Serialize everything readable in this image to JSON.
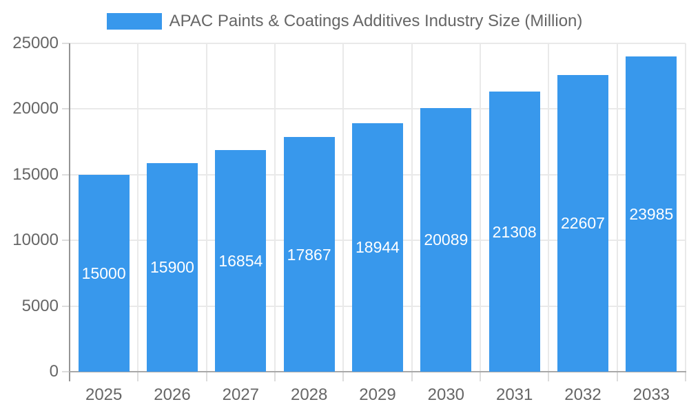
{
  "chart_data": {
    "type": "bar",
    "title": "APAC Paints & Coatings Additives Industry Size (Million)",
    "categories": [
      "2025",
      "2026",
      "2027",
      "2028",
      "2029",
      "2030",
      "2031",
      "2032",
      "2033"
    ],
    "series": [
      {
        "name": "APAC Paints & Coatings Additives Industry Size (Million)",
        "values": [
          15000,
          15900,
          16854,
          17867,
          18944,
          20089,
          21308,
          22607,
          23985
        ]
      }
    ],
    "data_labels": [
      "15000",
      "15900",
      "16854",
      "17867",
      "18944",
      "20089",
      "21308",
      "22607",
      "23985"
    ],
    "xlabel": "",
    "ylabel": "",
    "ylim": [
      0,
      25000
    ],
    "ytick_step": 5000,
    "ytick_labels": [
      "0",
      "5000",
      "10000",
      "15000",
      "20000",
      "25000"
    ],
    "grid": true,
    "legend_position": "top",
    "colors": {
      "bar": "#3898EC",
      "bar_value_text": "#ffffff",
      "axis_text": "#666666",
      "gridline": "#e9e9e9",
      "tick": "#dcdcdc",
      "y_axis_line": "#949494",
      "x_axis_line": "#a8a8a8",
      "background": "#ffffff"
    }
  }
}
